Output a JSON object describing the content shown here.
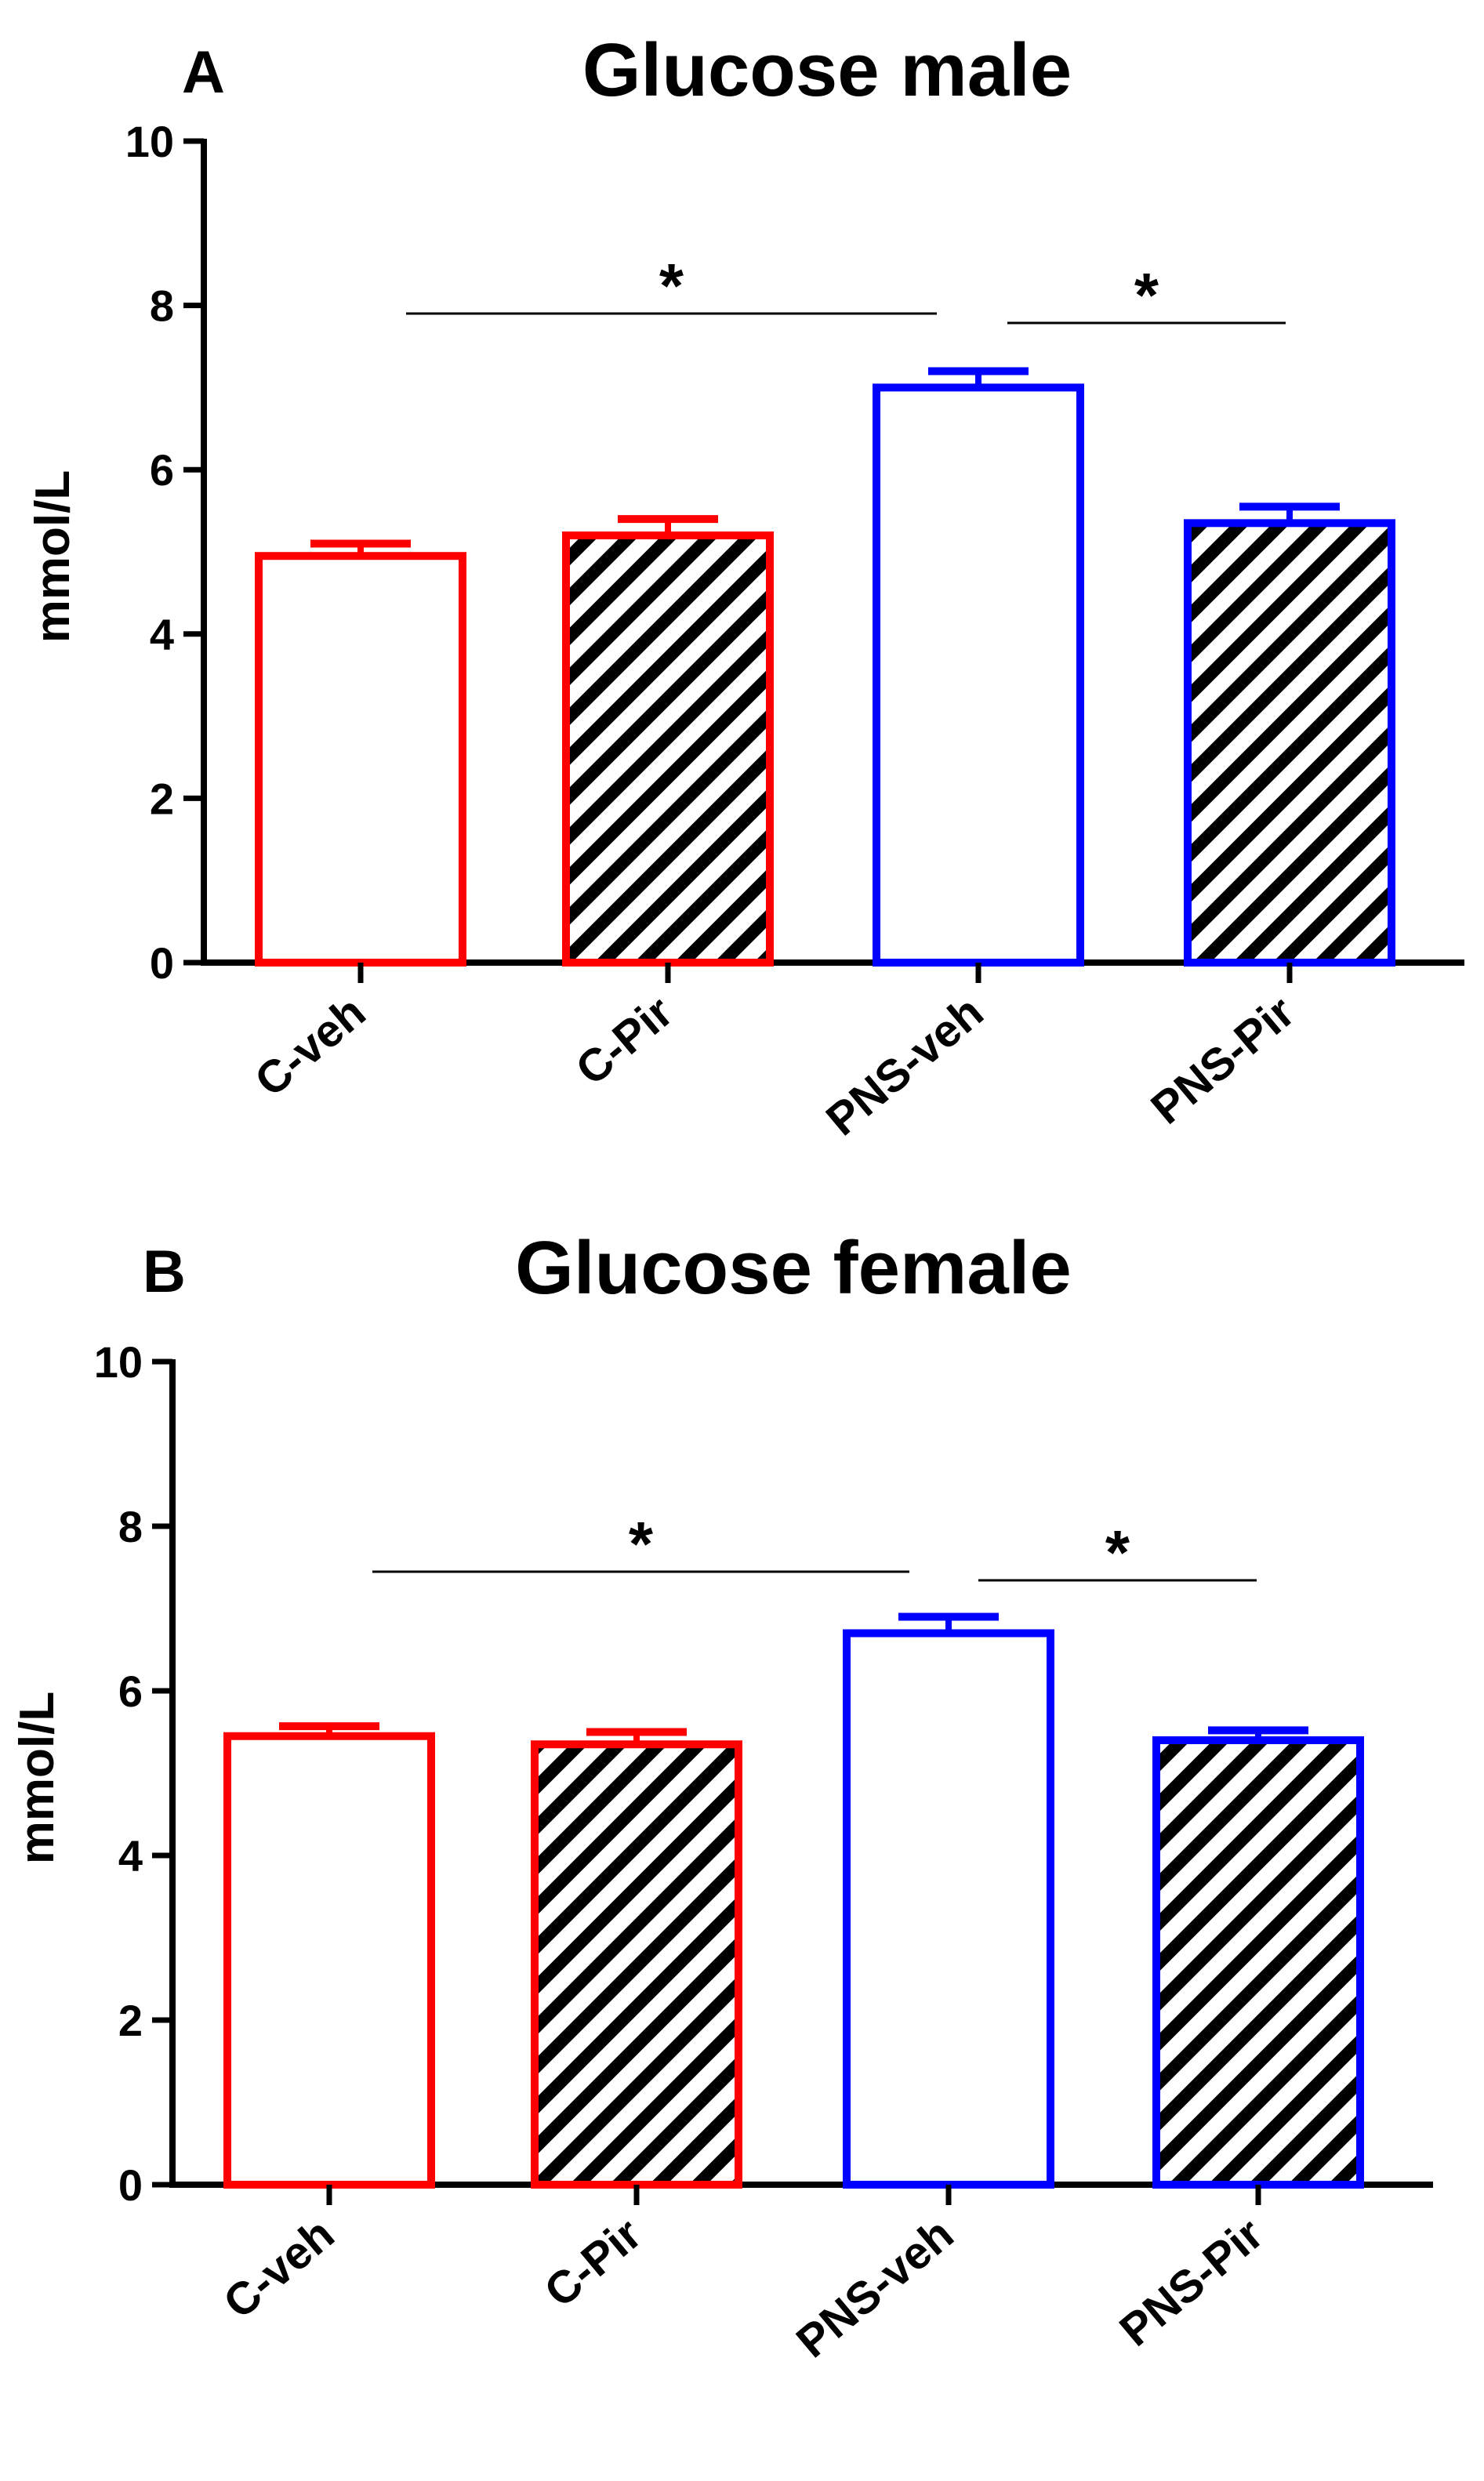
{
  "colors": {
    "control": "#ff0000",
    "pns": "#0000ff",
    "hatch": "#000000"
  },
  "chart_data": [
    {
      "type": "bar",
      "panel": "A",
      "title": "Glucose male",
      "ylabel": "mmol/L",
      "ylim": [
        0,
        10
      ],
      "yticks": [
        "0",
        "2",
        "4",
        "6",
        "8",
        "10"
      ],
      "categories": [
        "C-veh",
        "C-Pir",
        "PNS-veh",
        "PNS-Pir"
      ],
      "values": [
        4.95,
        5.2,
        7.0,
        5.35
      ],
      "errors": [
        0.15,
        0.2,
        0.2,
        0.2
      ],
      "patterns": [
        "open",
        "hatched",
        "open",
        "hatched"
      ],
      "colors": [
        "control",
        "control",
        "pns",
        "pns"
      ],
      "significance": [
        {
          "from": 0,
          "to": 2,
          "label": "*"
        },
        {
          "from": 2,
          "to": 3,
          "label": "*"
        }
      ]
    },
    {
      "type": "bar",
      "panel": "B",
      "title": "Glucose female",
      "ylabel": "mmol/L",
      "ylim": [
        0,
        10
      ],
      "yticks": [
        "0",
        "2",
        "4",
        "6",
        "8",
        "10"
      ],
      "categories": [
        "C-veh",
        "C-Pir",
        "PNS-veh",
        "PNS-Pir"
      ],
      "values": [
        5.45,
        5.35,
        6.7,
        5.4
      ],
      "errors": [
        0.12,
        0.15,
        0.2,
        0.12
      ],
      "patterns": [
        "open",
        "hatched",
        "open",
        "hatched"
      ],
      "colors": [
        "control",
        "control",
        "pns",
        "pns"
      ],
      "significance": [
        {
          "from": 0,
          "to": 2,
          "label": "*"
        },
        {
          "from": 2,
          "to": 3,
          "label": "*"
        }
      ]
    }
  ]
}
